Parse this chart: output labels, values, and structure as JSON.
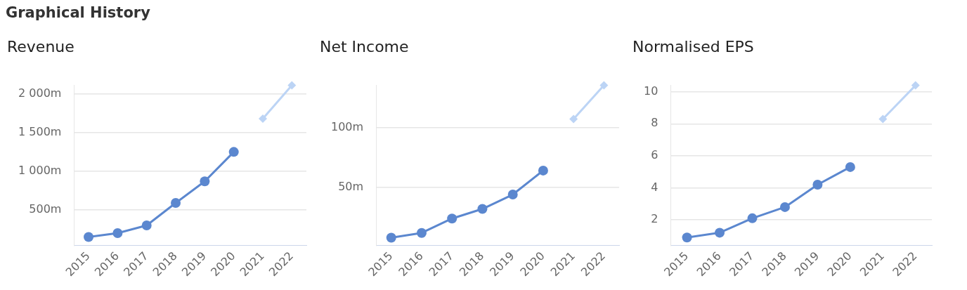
{
  "chart_data": [
    {
      "type": "line",
      "title": "Revenue",
      "categories": [
        "2015",
        "2016",
        "2017",
        "2018",
        "2019",
        "2020",
        "2021",
        "2022"
      ],
      "series": [
        {
          "color": "#5b87cf",
          "marker": "circle",
          "values": [
            150,
            200,
            300,
            590,
            870,
            1250,
            null,
            null
          ]
        },
        {
          "color": "#bcd4f5",
          "marker": "diamond",
          "values": [
            null,
            null,
            null,
            null,
            null,
            null,
            1680,
            2110
          ]
        }
      ],
      "ylim": [
        40,
        2110
      ],
      "yticks": [
        {
          "value": 500,
          "label": "500m"
        },
        {
          "value": 1000,
          "label": "1 000m"
        },
        {
          "value": 1500,
          "label": "1 500m"
        },
        {
          "value": 2000,
          "label": "2 000m"
        }
      ],
      "grid": "y",
      "annotations": [
        "Graphical History"
      ]
    },
    {
      "type": "line",
      "title": "Net Income",
      "categories": [
        "2015",
        "2016",
        "2017",
        "2018",
        "2019",
        "2020",
        "2021",
        "2022"
      ],
      "series": [
        {
          "color": "#5b87cf",
          "marker": "circle",
          "values": [
            8,
            12,
            24,
            32,
            44,
            64,
            null,
            null
          ]
        },
        {
          "color": "#bcd4f5",
          "marker": "diamond",
          "values": [
            null,
            null,
            null,
            null,
            null,
            null,
            107,
            135
          ]
        }
      ],
      "ylim": [
        1.5,
        135
      ],
      "yticks": [
        {
          "value": 50,
          "label": "50m"
        },
        {
          "value": 100,
          "label": "100m"
        }
      ],
      "grid": "y"
    },
    {
      "type": "line",
      "title": "Normalised EPS",
      "categories": [
        "2015",
        "2016",
        "2017",
        "2018",
        "2019",
        "2020",
        "2021",
        "2022"
      ],
      "series": [
        {
          "color": "#5b87cf",
          "marker": "circle",
          "values": [
            0.9,
            1.2,
            2.1,
            2.8,
            4.2,
            5.3,
            null,
            null
          ]
        },
        {
          "color": "#bcd4f5",
          "marker": "diamond",
          "values": [
            null,
            null,
            null,
            null,
            null,
            null,
            8.3,
            10.4
          ]
        }
      ],
      "ylim": [
        0.4,
        10.4
      ],
      "yticks": [
        2,
        4,
        6,
        8,
        10
      ],
      "grid": "y"
    }
  ]
}
